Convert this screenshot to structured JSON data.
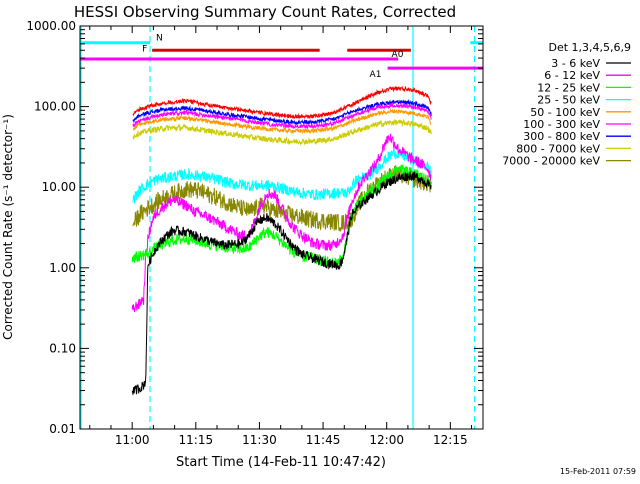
{
  "chart_data": {
    "type": "line",
    "title": "HESSI Observing Summary Count Rates, Corrected",
    "xlabel": "Start Time (14-Feb-11 10:47:42)",
    "ylabel": "Corrected Count Rate (s⁻¹ detector⁻¹)",
    "footer": "15-Feb-2011 07:59",
    "x_unit": "minutes after 10:47:42",
    "xlim": [
      0,
      95
    ],
    "ylim": [
      0.01,
      1000
    ],
    "yscale": "log",
    "grid": false,
    "xticks": [
      {
        "value": 12.3,
        "label": "11:00"
      },
      {
        "value": 27.3,
        "label": "11:15"
      },
      {
        "value": 42.3,
        "label": "11:30"
      },
      {
        "value": 57.3,
        "label": "11:45"
      },
      {
        "value": 72.3,
        "label": "12:00"
      },
      {
        "value": 87.3,
        "label": "12:15"
      }
    ],
    "yticks": [
      {
        "value": 1000,
        "label": "1000.00"
      },
      {
        "value": 100,
        "label": "100.00"
      },
      {
        "value": 10,
        "label": "10.00"
      },
      {
        "value": 1,
        "label": "1.00"
      },
      {
        "value": 0.1,
        "label": "0.10"
      },
      {
        "value": 0.01,
        "label": "0.01"
      }
    ],
    "legend": {
      "position": "right",
      "header": "Det 1,3,4,5,6,9",
      "entries": [
        {
          "label": "3 - 6 keV",
          "color": "#000000"
        },
        {
          "label": "6 - 12 keV",
          "color": "#ff00ff"
        },
        {
          "label": "12 - 25 keV",
          "color": "#00ff00"
        },
        {
          "label": "25 - 50 keV",
          "color": "#00ffff"
        },
        {
          "label": "50 - 100 keV",
          "color": "#ff9900"
        },
        {
          "label": "100 - 300 keV",
          "color": "#ff00ff"
        },
        {
          "label": "300 - 800 keV",
          "color": "#0000ff"
        },
        {
          "label": "800 - 7000 keV",
          "color": "#cccc00"
        },
        {
          "label": "7000 - 20000 keV",
          "color": "#888800"
        }
      ]
    },
    "flag_bars": [
      {
        "label": "N",
        "color": "#00ffff",
        "y": 620,
        "segments": [
          [
            0,
            16.5
          ],
          [
            92,
            95
          ]
        ]
      },
      {
        "label": "F",
        "color": "#dd0000",
        "y": 500,
        "segments": [
          [
            17,
            56.5
          ],
          [
            63,
            78
          ]
        ]
      },
      {
        "label": "A0",
        "color": "#ff00ff",
        "y": 390,
        "segments": [
          [
            0,
            75
          ]
        ]
      },
      {
        "label": "A1",
        "color": "#ff00ff",
        "y": 300,
        "segments": [
          [
            72.5,
            95
          ]
        ]
      }
    ],
    "vertical_markers": [
      {
        "x": 16.5,
        "color": "#00ffff",
        "style": "dashed"
      },
      {
        "x": 78.5,
        "color": "#00ffff",
        "style": "solid"
      },
      {
        "x": 93.0,
        "color": "#00ffff",
        "style": "dashed"
      }
    ],
    "series": [
      {
        "name": "",
        "color": "#ff0000",
        "noise": 0.025,
        "x": [
          12.5,
          13.5,
          16,
          20,
          25,
          30,
          35,
          40,
          45,
          50,
          55,
          60,
          65,
          70,
          74,
          78,
          80,
          82,
          82.8
        ],
        "y": [
          80,
          90,
          100,
          112,
          118,
          105,
          96,
          88,
          80,
          76,
          76,
          84,
          112,
          148,
          168,
          165,
          152,
          135,
          105
        ]
      },
      {
        "name": "",
        "color": "#0000ff",
        "noise": 0.025,
        "x": [
          12.5,
          13.5,
          16,
          20,
          25,
          30,
          35,
          40,
          45,
          50,
          55,
          60,
          65,
          70,
          74,
          78,
          80,
          82,
          82.8
        ],
        "y": [
          66,
          75,
          84,
          92,
          96,
          88,
          80,
          74,
          68,
          64,
          64,
          70,
          90,
          106,
          114,
          112,
          104,
          96,
          80
        ]
      },
      {
        "name": "",
        "color": "#ff00ff",
        "noise": 0.025,
        "x": [
          12.5,
          13.5,
          16,
          20,
          25,
          30,
          35,
          40,
          45,
          50,
          55,
          60,
          65,
          70,
          74,
          78,
          80,
          82,
          82.8
        ],
        "y": [
          58,
          64,
          72,
          80,
          84,
          78,
          72,
          66,
          60,
          57,
          57,
          62,
          80,
          98,
          104,
          100,
          94,
          86,
          72
        ]
      },
      {
        "name": "",
        "color": "#ff9900",
        "noise": 0.025,
        "x": [
          12.5,
          13.5,
          16,
          20,
          25,
          30,
          35,
          40,
          45,
          50,
          55,
          60,
          65,
          70,
          74,
          78,
          80,
          82,
          82.8
        ],
        "y": [
          52,
          58,
          64,
          70,
          72,
          66,
          60,
          56,
          52,
          50,
          50,
          54,
          68,
          82,
          88,
          84,
          80,
          74,
          62
        ]
      },
      {
        "name": "",
        "color": "#cccc00",
        "noise": 0.035,
        "x": [
          12.5,
          13.5,
          16,
          20,
          25,
          30,
          35,
          40,
          45,
          50,
          55,
          60,
          65,
          70,
          74,
          78,
          80,
          82,
          82.8
        ],
        "y": [
          42,
          46,
          50,
          54,
          55,
          50,
          46,
          42,
          39,
          37,
          37,
          40,
          50,
          60,
          64,
          62,
          58,
          54,
          46
        ]
      },
      {
        "name": "",
        "color": "#00ffff",
        "noise": 0.07,
        "x": [
          12.5,
          14,
          16,
          18,
          20,
          25,
          28,
          32,
          36,
          40,
          42,
          45,
          48,
          52,
          56,
          60,
          63,
          65,
          68,
          70,
          72,
          74,
          76,
          78,
          80,
          82,
          82.8
        ],
        "y": [
          7,
          9,
          11,
          12.5,
          13,
          14.5,
          14,
          12.5,
          11,
          10.5,
          10.5,
          10.5,
          9.5,
          8.5,
          8,
          8.5,
          8.5,
          12,
          14,
          17,
          22,
          27,
          25,
          22,
          20,
          18,
          15
        ]
      },
      {
        "name": "",
        "color": "#888800",
        "noise": 0.11,
        "x": [
          12.5,
          14,
          16,
          18,
          20,
          25,
          28,
          32,
          36,
          40,
          43,
          46,
          50,
          54,
          58,
          62,
          64,
          66,
          68,
          70,
          72,
          74,
          76,
          78,
          80,
          82,
          82.8
        ],
        "y": [
          3.5,
          4.5,
          5.5,
          6.5,
          7.5,
          9.5,
          9,
          7.5,
          6,
          5,
          6,
          5,
          4.5,
          4,
          3.8,
          3.6,
          4,
          6.5,
          9,
          11,
          13,
          14.5,
          14,
          13,
          12,
          11,
          10
        ]
      },
      {
        "name": "",
        "color": "#ff00ff",
        "noise": 0.07,
        "x": [
          12.3,
          12.5,
          13,
          13.5,
          14,
          14.5,
          15,
          15.5,
          16,
          16.5,
          17,
          18,
          20,
          22,
          25,
          27,
          30,
          34,
          38,
          40,
          42,
          44,
          46,
          48,
          50,
          52,
          55,
          58,
          60,
          62,
          64,
          66,
          68,
          70,
          72,
          73,
          75,
          78,
          80,
          82,
          82.8
        ],
        "y": [
          0.3,
          0.3,
          0.32,
          0.35,
          0.35,
          0.4,
          0.4,
          1.4,
          2.2,
          3,
          3.8,
          4.8,
          6,
          7,
          6,
          5,
          4.3,
          3.3,
          2.5,
          2.6,
          5,
          8.5,
          8,
          5,
          3.3,
          2.6,
          2,
          1.9,
          1.9,
          2.5,
          6.5,
          11,
          15,
          20,
          36,
          43,
          30,
          23,
          20,
          17,
          13
        ]
      },
      {
        "name": "",
        "color": "#00ff00",
        "noise": 0.07,
        "x": [
          12.3,
          13,
          14,
          16,
          16.5,
          18,
          20,
          22,
          25,
          27,
          30,
          34,
          38,
          40,
          42,
          44,
          46,
          48,
          50,
          52,
          55,
          58,
          60,
          62,
          64,
          66,
          68,
          70,
          72,
          75,
          78,
          80,
          82,
          82.8
        ],
        "y": [
          1.35,
          1.35,
          1.4,
          1.5,
          1.55,
          1.8,
          2,
          2.2,
          2.3,
          2.2,
          2,
          1.8,
          1.7,
          1.8,
          2.4,
          2.8,
          2.5,
          2,
          1.6,
          1.4,
          1.3,
          1.2,
          1.15,
          1.3,
          4.5,
          6.5,
          8.5,
          10,
          13,
          17,
          15,
          14,
          12,
          11
        ]
      },
      {
        "name": "",
        "color": "#000000",
        "noise": 0.06,
        "x": [
          12.3,
          13,
          14,
          15,
          15.5,
          16,
          16.5,
          18,
          20,
          22,
          25,
          28,
          31,
          34,
          38,
          40,
          42,
          44,
          46,
          48,
          50,
          52,
          55,
          58,
          60,
          61,
          62,
          64,
          66,
          68,
          70,
          72,
          75,
          78,
          80,
          82,
          82.8
        ],
        "y": [
          0.03,
          0.03,
          0.032,
          0.035,
          0.04,
          1.1,
          1.25,
          1.8,
          2.4,
          2.9,
          2.8,
          2.4,
          2.1,
          1.9,
          2,
          2.6,
          3.8,
          4.2,
          3.5,
          2.6,
          1.9,
          1.5,
          1.3,
          1.15,
          1.1,
          1.05,
          1.3,
          4.5,
          6,
          7.5,
          9,
          11,
          13,
          14,
          13,
          11,
          9.5
        ]
      }
    ]
  }
}
